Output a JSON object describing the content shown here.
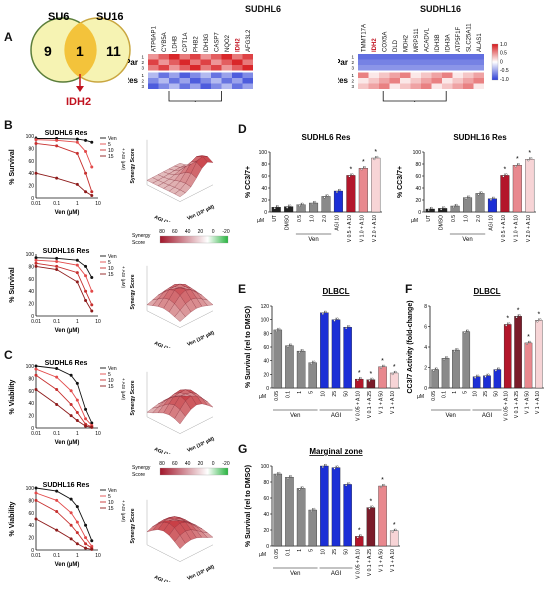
{
  "panels": {
    "A": "A",
    "B": "B",
    "C": "C",
    "D": "D",
    "E": "E",
    "F": "F",
    "G": "G"
  },
  "venn": {
    "left_label": "SU6",
    "right_label": "SU16",
    "left_count": "9",
    "overlap_count": "1",
    "right_count": "11",
    "overlap_gene": "IDH2"
  },
  "heatmaps": {
    "sudhl6": {
      "title": "SUDHL6",
      "genes": [
        "ATP6AP1",
        "CYB5A",
        "LDHB",
        "CPT1A",
        "PHB2",
        "IDH3G",
        "CASP7",
        "NQO2",
        "IDH2",
        "AFG3L2"
      ],
      "highlight": "IDH2",
      "group_labels": [
        "Par",
        "Res"
      ],
      "row_ids": [
        "1",
        "2",
        "3",
        "1",
        "2",
        "3"
      ]
    },
    "sudhl16": {
      "title": "SUDHL16",
      "genes": [
        "TMMT17A",
        "IDH2",
        "COX5A",
        "DLD",
        "MDH2",
        "MRPS11",
        "ACADVL",
        "IDH3B",
        "IDH3A",
        "ATP5F1F",
        "SLC25A11",
        "ALAS1"
      ],
      "highlight": "IDH2",
      "group_labels": [
        "Par",
        "Res"
      ],
      "row_ids": [
        "1",
        "2",
        "3",
        "1",
        "2",
        "3"
      ]
    },
    "scale_ticks": [
      "1.0",
      "0.5",
      "0",
      "-0.5",
      "-1.0"
    ],
    "colors": {
      "high": "#d7191c",
      "mid": "#ffffff",
      "low": "#2c3ed6"
    }
  },
  "dose_response": [
    {
      "id": "B1",
      "title": "SUDHL6 Res",
      "ylabel": "% Survival",
      "xlabel": "Ven (µM)",
      "xticks": [
        "0.01",
        "0.1",
        "1",
        "10"
      ],
      "yticks": [
        "0",
        "20",
        "40",
        "60",
        "80",
        "100"
      ],
      "legend": [
        "Ven",
        "5",
        "10",
        "15"
      ],
      "legend_note": "+ AGI (µM)"
    },
    {
      "id": "B2",
      "title": "SUDHL16 Res",
      "ylabel": "% Survival",
      "xlabel": "Ven (µM)",
      "xticks": [
        "0.01",
        "0.1",
        "1",
        "10"
      ],
      "yticks": [
        "0",
        "20",
        "40",
        "60",
        "80",
        "100"
      ],
      "legend": [
        "Ven",
        "5",
        "10",
        "15"
      ],
      "legend_note": "+ AGI (µM)"
    },
    {
      "id": "C1",
      "title": "SUDHL6 Res",
      "ylabel": "% Viability",
      "xlabel": "Ven (µM)",
      "xticks": [
        "0.01",
        "0.1",
        "1",
        "10"
      ],
      "yticks": [
        "0",
        "20",
        "40",
        "60",
        "80",
        "100"
      ],
      "legend": [
        "Ven",
        "5",
        "10",
        "15"
      ],
      "legend_note": "+ AGI (µM)"
    },
    {
      "id": "C2",
      "title": "SUDHL16 Res",
      "ylabel": "% Viability",
      "xlabel": "Ven (µM)",
      "xticks": [
        "0.01",
        "0.1",
        "1",
        "10"
      ],
      "yticks": [
        "0",
        "20",
        "40",
        "60",
        "80",
        "100"
      ],
      "legend": [
        "Ven",
        "5",
        "10",
        "15"
      ],
      "legend_note": "+ AGI (µM)"
    }
  ],
  "synergy": {
    "zlabel": "Synergy Score",
    "xlabel": "Ven (10² µM)",
    "ylabel": "AGI (10² µM)",
    "legend_title": "Synergy Score",
    "legend_ticks": [
      "80",
      "60",
      "40",
      "20",
      "0",
      "-20"
    ],
    "legend_low": "#27b43f",
    "legend_high": "#a1162a"
  },
  "bar_panels": {
    "D1": {
      "title": "SUDHL6 Res",
      "ylabel": "% CC3/7+",
      "yticks": [
        "0",
        "20",
        "40",
        "60",
        "80",
        "100"
      ],
      "ticks": [
        "UT",
        "DMSO",
        "0.5",
        "1.0",
        "2.0",
        "AGI 10",
        "V 0.5 + A 10",
        "V 1.0 + A 10",
        "V 2.0 + A 10"
      ],
      "groups": [
        "Ven"
      ],
      "unit": "µM",
      "star": "*"
    },
    "D2": {
      "title": "SUDHL16 Res",
      "ylabel": "% CC3/7+",
      "yticks": [
        "0",
        "20",
        "40",
        "60",
        "80",
        "100"
      ],
      "ticks": [
        "UT",
        "DMSO",
        "0.5",
        "1.0",
        "2.0",
        "AGI 10",
        "V 0.5 + A 10",
        "V 1.0 + A 10",
        "V 2.0 + A 10"
      ],
      "groups": [
        "Ven"
      ],
      "unit": "µM",
      "star": "*"
    },
    "E": {
      "title": "DLBCL",
      "ylabel": "% Survival (rel to DMSO)",
      "yticks": [
        "0",
        "20",
        "40",
        "60",
        "80",
        "100",
        "120"
      ],
      "ticks": [
        "0.05",
        "0.1",
        "1",
        "5",
        "10",
        "25",
        "50",
        "V 0.05 + A 10",
        "V 0.1 + A 25",
        "V 1 + A 50",
        "V 1 + A 10"
      ],
      "groups": [
        "Ven",
        "AGI"
      ],
      "unit": "µM",
      "star": "*"
    },
    "F": {
      "title": "DLBCL",
      "ylabel": "CC3/7 Activity (fold-change)",
      "yticks": [
        "0",
        "2",
        "4",
        "6",
        "8"
      ],
      "ticks": [
        "0.05",
        "0.1",
        "1",
        "5",
        "10",
        "25",
        "50",
        "V 0.05 + A 10",
        "V 0.1 + A 25",
        "V 1 + A 50",
        "V 1 + A 10"
      ],
      "groups": [
        "Ven",
        "AGI"
      ],
      "unit": "µM",
      "star": "*"
    },
    "G": {
      "title": "Marginal zone",
      "ylabel": "% Survival (rel to DMSO)",
      "yticks": [
        "0",
        "20",
        "40",
        "60",
        "80",
        "100"
      ],
      "ticks": [
        "0.05",
        "0.1",
        "1",
        "5",
        "10",
        "25",
        "50",
        "V 0.05 + A 10",
        "V 0.1 + A 25",
        "V 1 + A 50",
        "V 1 + A 10"
      ],
      "groups": [
        "Ven",
        "AGI"
      ],
      "unit": "µM",
      "star": "*"
    }
  },
  "chart_data": [
    {
      "type": "bar",
      "panel": "D1",
      "title": "SUDHL6 Res",
      "ylabel": "% CC3/7+",
      "ylim": [
        0,
        100
      ],
      "categories": [
        "UT",
        "DMSO",
        "0.5",
        "1.0",
        "2.0",
        "AGI 10",
        "V 0.5 + A 10",
        "V 1.0 + A 10",
        "V 2.0 + A 10"
      ],
      "values": [
        8,
        9,
        12,
        15,
        26,
        35,
        61,
        73,
        90
      ],
      "colors": [
        "#222222",
        "#222222",
        "#8a8a8a",
        "#8a8a8a",
        "#8a8a8a",
        "#1c2fd6",
        "#b3162b",
        "#e8888e",
        "#f7d4d6"
      ]
    },
    {
      "type": "bar",
      "panel": "D2",
      "title": "SUDHL16 Res",
      "ylabel": "% CC3/7+",
      "ylim": [
        0,
        100
      ],
      "categories": [
        "UT",
        "DMSO",
        "0.5",
        "1.0",
        "2.0",
        "AGI 10",
        "V 0.5 + A 10",
        "V 1.0 + A 10",
        "V 2.0 + A 10"
      ],
      "values": [
        5,
        6,
        10,
        24,
        31,
        22,
        61,
        78,
        88
      ],
      "colors": [
        "#222222",
        "#222222",
        "#8a8a8a",
        "#8a8a8a",
        "#8a8a8a",
        "#1c2fd6",
        "#b3162b",
        "#e8888e",
        "#f7d4d6"
      ]
    },
    {
      "type": "bar",
      "panel": "E",
      "title": "DLBCL",
      "ylabel": "% Survival (rel to DMSO)",
      "ylim": [
        0,
        120
      ],
      "categories": [
        "0.05",
        "0.1",
        "1",
        "5",
        "10",
        "25",
        "50",
        "V 0.05 + A 10",
        "V 0.1 + A 25",
        "V 1 + A 50",
        "V 1 + A 10"
      ],
      "values": [
        85,
        62,
        54,
        37,
        110,
        100,
        89,
        13,
        12,
        31,
        22
      ],
      "colors": [
        "#8a8a8a",
        "#8a8a8a",
        "#8a8a8a",
        "#8a8a8a",
        "#1c2fd6",
        "#1c2fd6",
        "#1c2fd6",
        "#b3162b",
        "#7a1c2a",
        "#e8888e",
        "#f7d4d6"
      ]
    },
    {
      "type": "bar",
      "panel": "F",
      "title": "DLBCL",
      "ylabel": "CC3/7 Activity (fold-change)",
      "ylim": [
        0,
        8
      ],
      "categories": [
        "0.05",
        "0.1",
        "1",
        "5",
        "10",
        "25",
        "50",
        "V 0.05 + A 10",
        "V 0.1 + A 25",
        "V 1 + A 50",
        "V 1 + A 10"
      ],
      "values": [
        1.8,
        2.9,
        3.7,
        5.5,
        1.1,
        1.2,
        1.8,
        6.2,
        7.0,
        4.4,
        6.6
      ],
      "colors": [
        "#8a8a8a",
        "#8a8a8a",
        "#8a8a8a",
        "#8a8a8a",
        "#1c2fd6",
        "#1c2fd6",
        "#1c2fd6",
        "#b3162b",
        "#7a1c2a",
        "#e8888e",
        "#f7d4d6"
      ]
    },
    {
      "type": "bar",
      "panel": "G",
      "title": "Marginal zone",
      "ylabel": "% Survival (rel to DMSO)",
      "ylim": [
        0,
        100
      ],
      "categories": [
        "0.05",
        "0.1",
        "1",
        "5",
        "10",
        "25",
        "50",
        "V 0.05 + A 10",
        "V 0.1 + A 25",
        "V 1 + A 50",
        "V 1 + A 10"
      ],
      "values": [
        90,
        86,
        72,
        45,
        100,
        98,
        77,
        12,
        48,
        75,
        19
      ],
      "colors": [
        "#8a8a8a",
        "#8a8a8a",
        "#8a8a8a",
        "#8a8a8a",
        "#1c2fd6",
        "#1c2fd6",
        "#1c2fd6",
        "#b3162b",
        "#7a1c2a",
        "#e8888e",
        "#f7d4d6"
      ]
    },
    {
      "type": "line",
      "panel": "B1",
      "title": "SUDHL6 Res",
      "ylabel": "% Survival",
      "xlabel": "Ven (µM)",
      "xscale": "log",
      "xlim": [
        0.01,
        10
      ],
      "ylim": [
        0,
        100
      ],
      "series": [
        {
          "name": "Ven",
          "x": [
            0.01,
            0.1,
            1,
            2.5,
            5
          ],
          "y": [
            96,
            96,
            95,
            93,
            90
          ]
        },
        {
          "name": "5",
          "x": [
            0.01,
            0.1,
            1,
            2.5,
            5
          ],
          "y": [
            94,
            93,
            90,
            75,
            50
          ]
        },
        {
          "name": "10",
          "x": [
            0.01,
            0.1,
            1,
            2.5,
            5
          ],
          "y": [
            88,
            84,
            72,
            40,
            10
          ]
        },
        {
          "name": "15",
          "x": [
            0.01,
            0.1,
            1,
            2.5,
            5
          ],
          "y": [
            40,
            32,
            22,
            10,
            4
          ]
        }
      ]
    },
    {
      "type": "line",
      "panel": "B2",
      "title": "SUDHL16 Res",
      "ylabel": "% Survival",
      "xlabel": "Ven (µM)",
      "xscale": "log",
      "xlim": [
        0.01,
        10
      ],
      "ylim": [
        0,
        100
      ],
      "series": [
        {
          "name": "Ven",
          "x": [
            0.01,
            0.1,
            1,
            2.5,
            5
          ],
          "y": [
            94,
            93,
            90,
            80,
            62
          ]
        },
        {
          "name": "5",
          "x": [
            0.01,
            0.1,
            1,
            2.5,
            5
          ],
          "y": [
            90,
            88,
            82,
            65,
            40
          ]
        },
        {
          "name": "10",
          "x": [
            0.01,
            0.1,
            1,
            2.5,
            5
          ],
          "y": [
            85,
            80,
            70,
            40,
            18
          ]
        },
        {
          "name": "15",
          "x": [
            0.01,
            0.1,
            1,
            2.5,
            5
          ],
          "y": [
            80,
            75,
            55,
            25,
            8
          ]
        }
      ]
    },
    {
      "type": "line",
      "panel": "C1",
      "title": "SUDHL6 Res",
      "ylabel": "% Viability",
      "xlabel": "Ven (µM)",
      "xscale": "log",
      "xlim": [
        0.01,
        10
      ],
      "ylim": [
        0,
        100
      ],
      "series": [
        {
          "name": "Ven",
          "x": [
            0.01,
            0.1,
            0.5,
            1,
            2.5,
            5
          ],
          "y": [
            100,
            96,
            85,
            72,
            30,
            8
          ]
        },
        {
          "name": "5",
          "x": [
            0.01,
            0.1,
            0.5,
            1,
            2.5,
            5
          ],
          "y": [
            95,
            82,
            60,
            45,
            15,
            4
          ]
        },
        {
          "name": "10",
          "x": [
            0.01,
            0.1,
            0.5,
            1,
            2.5,
            5
          ],
          "y": [
            85,
            62,
            38,
            25,
            6,
            2
          ]
        },
        {
          "name": "15",
          "x": [
            0.01,
            0.1,
            0.5,
            1,
            2.5,
            5
          ],
          "y": [
            62,
            38,
            20,
            12,
            3,
            1
          ]
        }
      ]
    },
    {
      "type": "line",
      "panel": "C2",
      "title": "SUDHL16 Res",
      "ylabel": "% Viability",
      "xlabel": "Ven (µM)",
      "xscale": "log",
      "xlim": [
        0.01,
        10
      ],
      "ylim": [
        0,
        100
      ],
      "series": [
        {
          "name": "Ven",
          "x": [
            0.01,
            0.1,
            0.5,
            1,
            2.5,
            5
          ],
          "y": [
            100,
            95,
            82,
            70,
            40,
            15
          ]
        },
        {
          "name": "5",
          "x": [
            0.01,
            0.1,
            0.5,
            1,
            2.5,
            5
          ],
          "y": [
            92,
            80,
            60,
            45,
            20,
            6
          ]
        },
        {
          "name": "10",
          "x": [
            0.01,
            0.1,
            0.5,
            1,
            2.5,
            5
          ],
          "y": [
            80,
            62,
            40,
            28,
            10,
            3
          ]
        },
        {
          "name": "15",
          "x": [
            0.01,
            0.1,
            0.5,
            1,
            2.5,
            5
          ],
          "y": [
            50,
            32,
            18,
            10,
            3,
            1
          ]
        }
      ]
    }
  ]
}
